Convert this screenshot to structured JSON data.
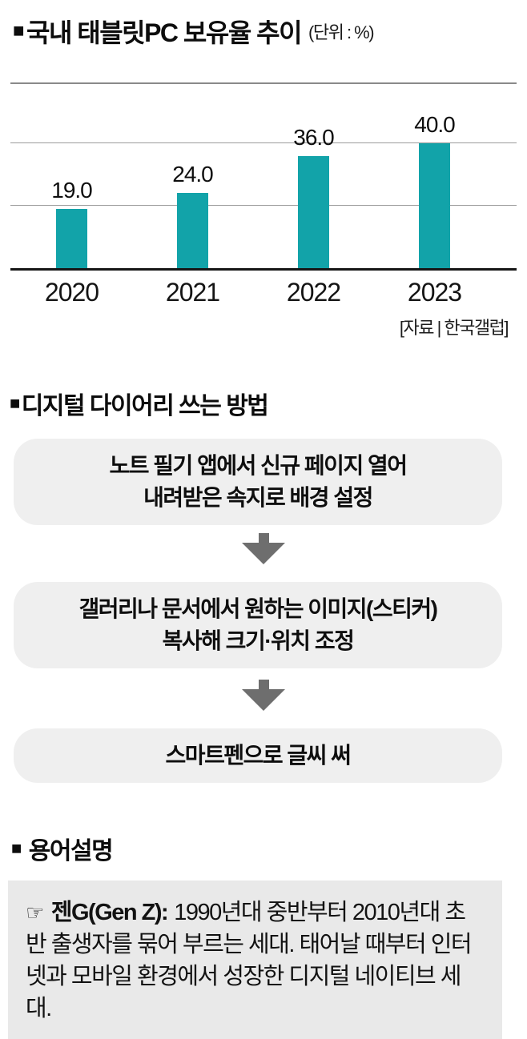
{
  "chart_section": {
    "bullet": "■",
    "title": "국내 태블릿PC 보유율 추이",
    "unit_label": "(단위 : %)",
    "source": "[자료 | 한국갤럽]"
  },
  "chart_data": {
    "type": "bar",
    "title": "국내 태블릿PC 보유율 추이",
    "unit": "%",
    "categories": [
      "2020",
      "2021",
      "2022",
      "2023"
    ],
    "values": [
      19.0,
      24.0,
      36.0,
      40.0
    ],
    "value_labels": [
      "19.0",
      "24.0",
      "36.0",
      "40.0"
    ],
    "ylim": [
      0,
      60
    ],
    "gridlines": [
      20,
      40
    ],
    "grid": true,
    "legend_position": "none",
    "bar_color": "#12A3A9",
    "source": "[자료 | 한국갤럽]"
  },
  "howto_section": {
    "bullet": "■",
    "heading": "디지털 다이어리 쓰는 방법",
    "steps": [
      [
        "노트 필기 앱에서 신규 페이지 열어",
        "내려받은 속지로 배경 설정"
      ],
      [
        "갤러리나 문서에서 원하는 이미지(스티커)",
        "복사해 크기·위치 조정"
      ],
      [
        "스마트펜으로 글씨 써"
      ]
    ]
  },
  "glossary_section": {
    "bullet": "■",
    "heading": "용어설명",
    "pointer_icon": "☞",
    "term": "젠G(Gen Z):",
    "definition": "1990년대 중반부터 2010년대 초반 출생자를 묶어 부르는 세대. 태어날 때부터 인터넷과 모바일 환경에서 성장한 디지털 네이티브 세대."
  },
  "colors": {
    "bar": "#12A3A9",
    "grid_line": "#9b9b9b",
    "separator": "#8a8a8a",
    "axis": "#161616",
    "step_box_bg": "#EFEFEF",
    "glossary_box_bg": "#E9E9E9",
    "arrow": "#6E6E6E"
  }
}
